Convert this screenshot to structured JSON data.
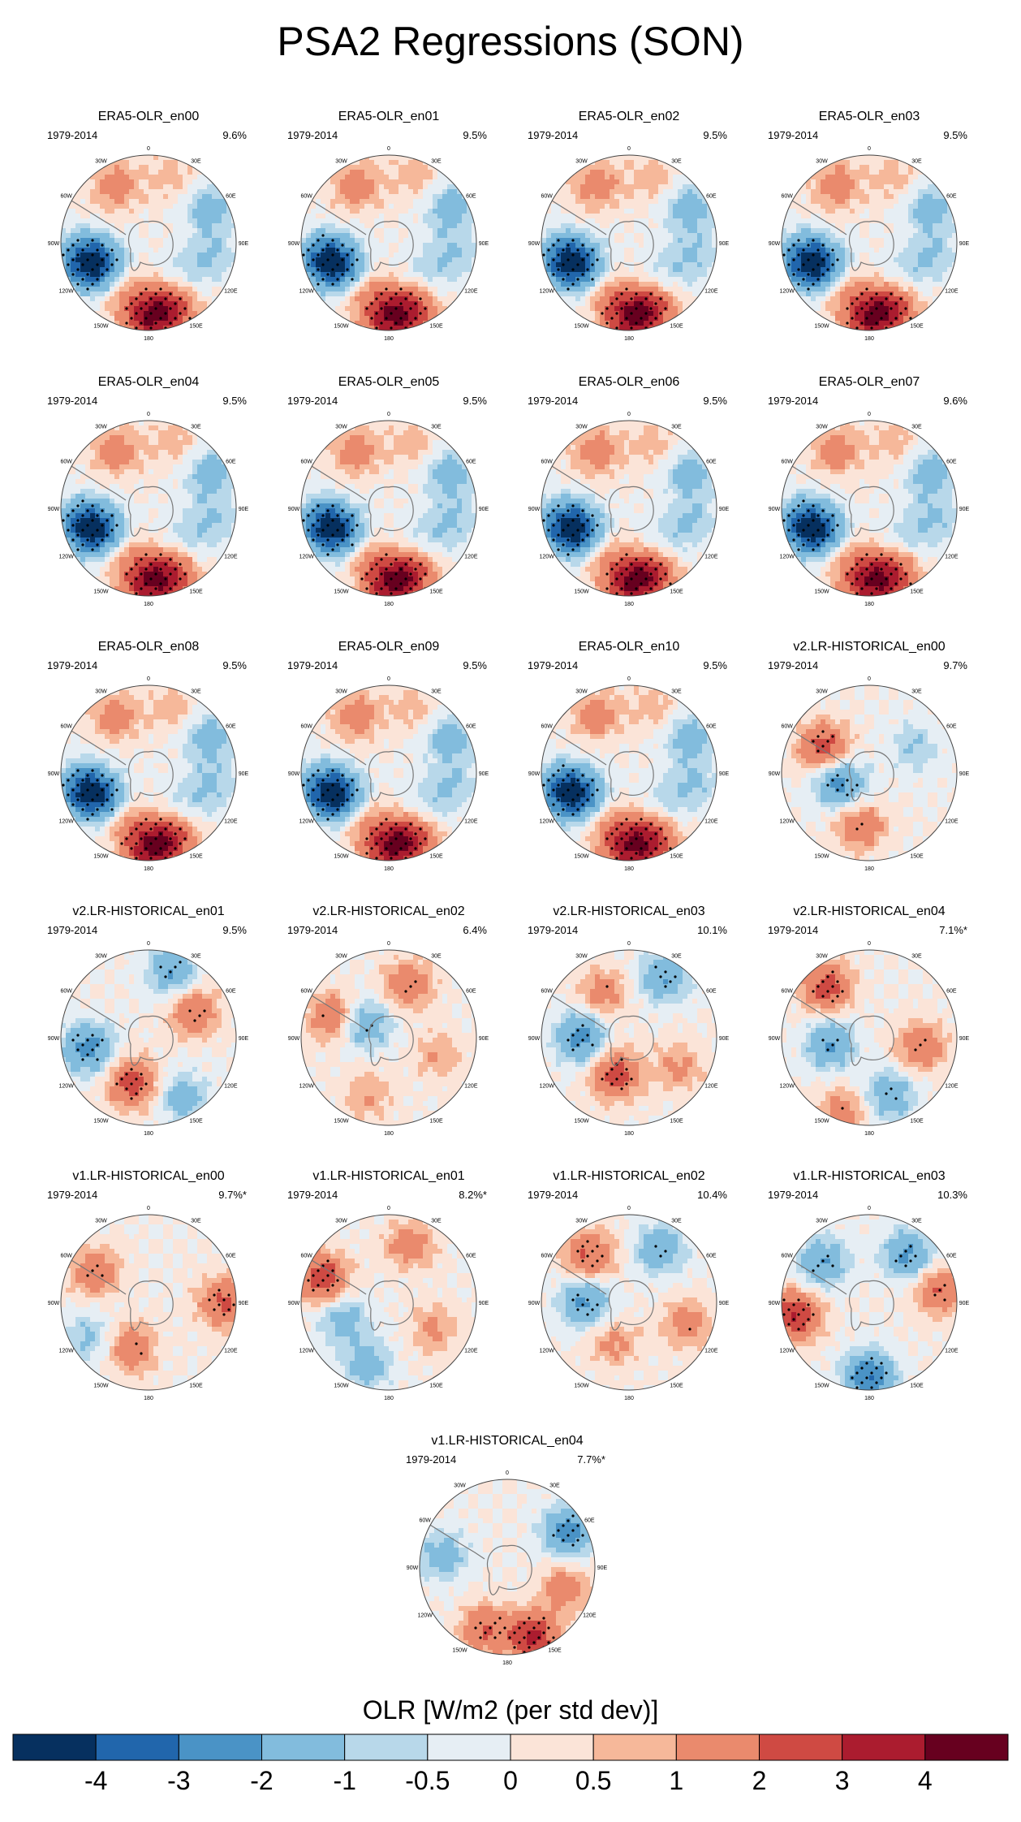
{
  "chart_data": {
    "type": "polar-stereographic-contour-map-grid",
    "title": "PSA2 Regressions (SON)",
    "colorbar": {
      "label": "OLR [W/m2 (per std dev)]",
      "tick_labels": [
        "-4",
        "-3",
        "-2",
        "-1",
        "-0.5",
        "0",
        "0.5",
        "1",
        "2",
        "3",
        "4"
      ],
      "levels": [
        -4,
        -3,
        -2,
        -1,
        -0.5,
        0,
        0.5,
        1,
        2,
        3,
        4
      ],
      "colors": [
        "#06305f",
        "#2166ac",
        "#4a93c6",
        "#82bcdd",
        "#b8d8ea",
        "#e6eef4",
        "#fbe4d8",
        "#f6b89a",
        "#ea8a6d",
        "#cf4a43",
        "#ab1c2f",
        "#67001f"
      ]
    },
    "map_labels": {
      "top": "0",
      "tr": "30E",
      "right1": "60E",
      "right2": "90E",
      "right3": "120E",
      "br": "150E",
      "bottom": "180",
      "bl": "150W",
      "left3": "120W",
      "left2": "90W",
      "left1": "60W",
      "tl": "30W"
    },
    "period": "1979-2014",
    "panels": [
      {
        "title": "ERA5-OLR_en00",
        "years": "1979-2014",
        "pct": "9.6%"
      },
      {
        "title": "ERA5-OLR_en01",
        "years": "1979-2014",
        "pct": "9.5%"
      },
      {
        "title": "ERA5-OLR_en02",
        "years": "1979-2014",
        "pct": "9.5%"
      },
      {
        "title": "ERA5-OLR_en03",
        "years": "1979-2014",
        "pct": "9.5%"
      },
      {
        "title": "ERA5-OLR_en04",
        "years": "1979-2014",
        "pct": "9.5%"
      },
      {
        "title": "ERA5-OLR_en05",
        "years": "1979-2014",
        "pct": "9.5%"
      },
      {
        "title": "ERA5-OLR_en06",
        "years": "1979-2014",
        "pct": "9.5%"
      },
      {
        "title": "ERA5-OLR_en07",
        "years": "1979-2014",
        "pct": "9.6%"
      },
      {
        "title": "ERA5-OLR_en08",
        "years": "1979-2014",
        "pct": "9.5%"
      },
      {
        "title": "ERA5-OLR_en09",
        "years": "1979-2014",
        "pct": "9.5%"
      },
      {
        "title": "ERA5-OLR_en10",
        "years": "1979-2014",
        "pct": "9.5%"
      },
      {
        "title": "v2.LR-HISTORICAL_en00",
        "years": "1979-2014",
        "pct": "9.7%"
      },
      {
        "title": "v2.LR-HISTORICAL_en01",
        "years": "1979-2014",
        "pct": "9.5%"
      },
      {
        "title": "v2.LR-HISTORICAL_en02",
        "years": "1979-2014",
        "pct": "6.4%"
      },
      {
        "title": "v2.LR-HISTORICAL_en03",
        "years": "1979-2014",
        "pct": "10.1%"
      },
      {
        "title": "v2.LR-HISTORICAL_en04",
        "years": "1979-2014",
        "pct": "7.1%*"
      },
      {
        "title": "v1.LR-HISTORICAL_en00",
        "years": "1979-2014",
        "pct": "9.7%*"
      },
      {
        "title": "v1.LR-HISTORICAL_en01",
        "years": "1979-2014",
        "pct": "8.2%*"
      },
      {
        "title": "v1.LR-HISTORICAL_en02",
        "years": "1979-2014",
        "pct": "10.4%"
      },
      {
        "title": "v1.LR-HISTORICAL_en03",
        "years": "1979-2014",
        "pct": "10.3%"
      },
      {
        "title": "v1.LR-HISTORICAL_en04",
        "years": "1979-2014",
        "pct": "7.7%*"
      }
    ],
    "patterns": {
      "ERA5": [
        {
          "lon": 255,
          "r": 0.75,
          "v": -3.5
        },
        {
          "lon": 240,
          "r": 0.6,
          "v": -2.5
        },
        {
          "lon": 180,
          "r": 0.85,
          "v": 3.5
        },
        {
          "lon": 160,
          "r": 0.8,
          "v": 2.5
        },
        {
          "lon": 210,
          "r": 0.6,
          "v": 1.2
        },
        {
          "lon": 330,
          "r": 0.75,
          "v": 1.5
        },
        {
          "lon": 60,
          "r": 0.8,
          "v": -1.5
        },
        {
          "lon": 100,
          "r": 0.75,
          "v": -1.0
        },
        {
          "lon": 20,
          "r": 0.8,
          "v": 0.8
        },
        {
          "lon": 130,
          "r": 0.55,
          "v": -0.7
        }
      ],
      "v2_en00": [
        {
          "lon": 300,
          "r": 0.6,
          "v": 2.5
        },
        {
          "lon": 250,
          "r": 0.35,
          "v": -2.5
        },
        {
          "lon": 190,
          "r": 0.6,
          "v": 1.8
        },
        {
          "lon": 60,
          "r": 0.6,
          "v": -1.0
        }
      ],
      "v2_en01": [
        {
          "lon": 260,
          "r": 0.7,
          "v": -2.5
        },
        {
          "lon": 200,
          "r": 0.55,
          "v": 2.5
        },
        {
          "lon": 60,
          "r": 0.6,
          "v": 2.0
        },
        {
          "lon": 20,
          "r": 0.8,
          "v": -2.0
        },
        {
          "lon": 150,
          "r": 0.8,
          "v": -1.5
        }
      ],
      "v2_en02": [
        {
          "lon": 290,
          "r": 0.7,
          "v": 1.8
        },
        {
          "lon": 300,
          "r": 0.3,
          "v": -1.8
        },
        {
          "lon": 20,
          "r": 0.65,
          "v": 1.8
        },
        {
          "lon": 110,
          "r": 0.6,
          "v": 1.0
        },
        {
          "lon": 200,
          "r": 0.7,
          "v": 1.0
        }
      ],
      "v2_en03": [
        {
          "lon": 270,
          "r": 0.55,
          "v": -2.5
        },
        {
          "lon": 200,
          "r": 0.45,
          "v": 2.5
        },
        {
          "lon": 30,
          "r": 0.8,
          "v": -2.0
        },
        {
          "lon": 330,
          "r": 0.6,
          "v": 1.5
        },
        {
          "lon": 120,
          "r": 0.65,
          "v": 1.2
        }
      ],
      "v2_en04": [
        {
          "lon": 320,
          "r": 0.75,
          "v": 2.5
        },
        {
          "lon": 260,
          "r": 0.45,
          "v": -2.0
        },
        {
          "lon": 100,
          "r": 0.6,
          "v": 1.8
        },
        {
          "lon": 160,
          "r": 0.7,
          "v": -1.8
        },
        {
          "lon": 200,
          "r": 0.9,
          "v": 1.5
        }
      ],
      "v1_en00": [
        {
          "lon": 300,
          "r": 0.7,
          "v": 1.8
        },
        {
          "lon": 90,
          "r": 0.85,
          "v": 2.2
        },
        {
          "lon": 200,
          "r": 0.55,
          "v": 1.8
        },
        {
          "lon": 240,
          "r": 0.8,
          "v": -1.2
        }
      ],
      "v1_en01": [
        {
          "lon": 290,
          "r": 0.8,
          "v": 2.8
        },
        {
          "lon": 250,
          "r": 0.55,
          "v": -1.5
        },
        {
          "lon": 20,
          "r": 0.7,
          "v": 1.5
        },
        {
          "lon": 200,
          "r": 0.75,
          "v": -1.5
        },
        {
          "lon": 120,
          "r": 0.6,
          "v": 1.2
        }
      ],
      "v1_en02": [
        {
          "lon": 320,
          "r": 0.7,
          "v": 2.2
        },
        {
          "lon": 270,
          "r": 0.5,
          "v": -2.2
        },
        {
          "lon": 30,
          "r": 0.7,
          "v": -1.8
        },
        {
          "lon": 110,
          "r": 0.7,
          "v": 1.5
        },
        {
          "lon": 200,
          "r": 0.5,
          "v": 1.2
        }
      ],
      "v1_en03": [
        {
          "lon": 260,
          "r": 0.85,
          "v": 3.0
        },
        {
          "lon": 310,
          "r": 0.7,
          "v": -2.0
        },
        {
          "lon": 180,
          "r": 0.85,
          "v": -3.0
        },
        {
          "lon": 40,
          "r": 0.7,
          "v": -2.2
        },
        {
          "lon": 80,
          "r": 0.8,
          "v": 2.0
        }
      ],
      "v1_en04": [
        {
          "lon": 160,
          "r": 0.85,
          "v": 3.2
        },
        {
          "lon": 200,
          "r": 0.75,
          "v": 2.0
        },
        {
          "lon": 60,
          "r": 0.8,
          "v": -2.5
        },
        {
          "lon": 280,
          "r": 0.75,
          "v": -1.5
        },
        {
          "lon": 110,
          "r": 0.7,
          "v": 1.5
        }
      ]
    },
    "panel_patterns": [
      "ERA5",
      "ERA5",
      "ERA5",
      "ERA5",
      "ERA5",
      "ERA5",
      "ERA5",
      "ERA5",
      "ERA5",
      "ERA5",
      "ERA5",
      "v2_en00",
      "v2_en01",
      "v2_en02",
      "v2_en03",
      "v2_en04",
      "v1_en00",
      "v1_en01",
      "v1_en02",
      "v1_en03",
      "v1_en04"
    ]
  }
}
